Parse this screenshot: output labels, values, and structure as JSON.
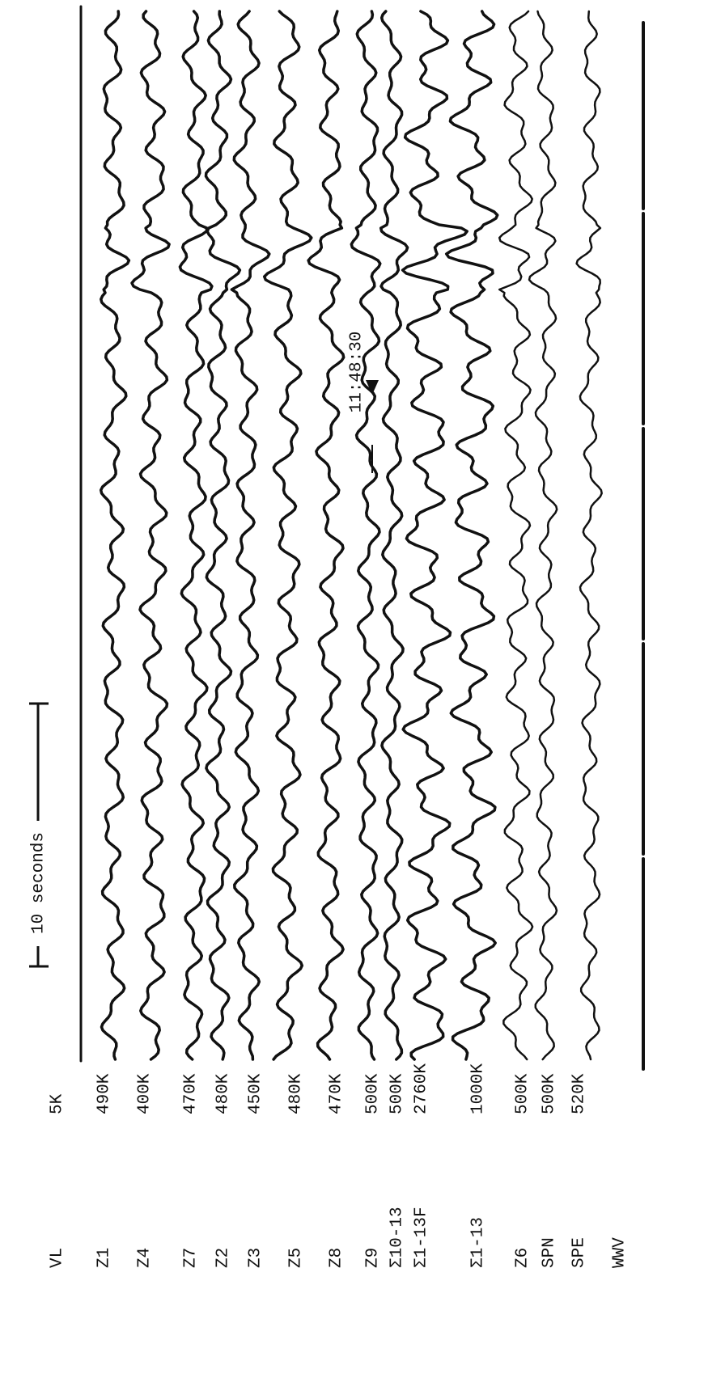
{
  "time_label": "11:48:30",
  "scale_label": "10 seconds",
  "channels": [
    {
      "name": "VL",
      "gain": "5K"
    },
    {
      "name": "Z1",
      "gain": "490K"
    },
    {
      "name": "Z4",
      "gain": "400K"
    },
    {
      "name": "Z7",
      "gain": "470K"
    },
    {
      "name": "Z2",
      "gain": "480K"
    },
    {
      "name": "Z3",
      "gain": "450K"
    },
    {
      "name": "Z5",
      "gain": "480K"
    },
    {
      "name": "Z8",
      "gain": "470K"
    },
    {
      "name": "Z9",
      "gain": "500K"
    },
    {
      "name": "Σ10-13",
      "gain": "500K"
    },
    {
      "name": "Σ1-13F",
      "gain": "2760K"
    },
    {
      "name": "Σ1-13",
      "gain": "1000K"
    },
    {
      "name": "Z6",
      "gain": "500K"
    },
    {
      "name": "SPN",
      "gain": "500K"
    },
    {
      "name": "SPE",
      "gain": "520K"
    },
    {
      "name": "WWV"
    }
  ]
}
